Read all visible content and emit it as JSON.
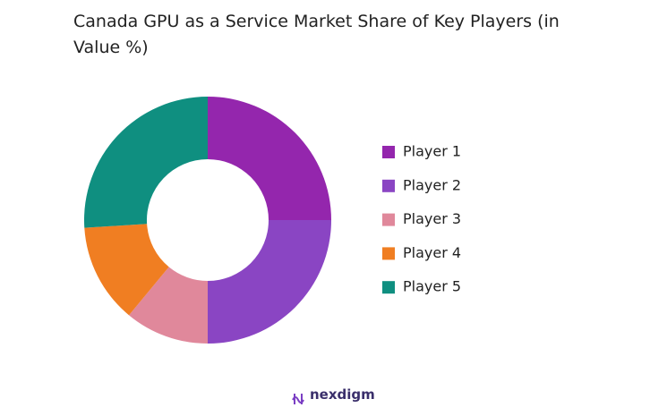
{
  "chart_data": {
    "type": "donut",
    "title": "Canada GPU as a Service Market Share of Key Players (in Value %)",
    "categories": [
      "Player 1",
      "Player 2",
      "Player 3",
      "Player 4",
      "Player 5"
    ],
    "values": [
      25,
      25,
      11,
      13,
      26
    ],
    "colors": [
      "#9426ad",
      "#8a45c3",
      "#e0889b",
      "#f07e22",
      "#0f8f80"
    ],
    "legend": "right"
  },
  "footer": {
    "brand": "nexdigm"
  }
}
